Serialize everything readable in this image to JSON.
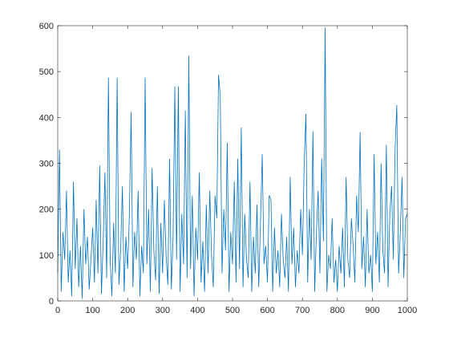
{
  "chart_data": {
    "type": "line",
    "color": "#0072bd",
    "xlim": [
      0,
      1000
    ],
    "ylim": [
      0,
      600
    ],
    "xticks": [
      0,
      100,
      200,
      300,
      400,
      500,
      600,
      700,
      800,
      900,
      1000
    ],
    "yticks": [
      0,
      100,
      200,
      300,
      400,
      500,
      600
    ],
    "x": [
      0,
      5,
      10,
      15,
      20,
      25,
      30,
      35,
      40,
      45,
      50,
      55,
      60,
      65,
      70,
      75,
      80,
      85,
      90,
      95,
      100,
      105,
      110,
      115,
      120,
      125,
      130,
      135,
      140,
      145,
      150,
      155,
      160,
      165,
      170,
      175,
      180,
      185,
      190,
      195,
      200,
      205,
      210,
      215,
      220,
      225,
      230,
      235,
      240,
      245,
      250,
      255,
      260,
      265,
      270,
      275,
      280,
      285,
      290,
      295,
      300,
      305,
      310,
      315,
      320,
      325,
      330,
      335,
      340,
      345,
      350,
      355,
      360,
      365,
      370,
      375,
      380,
      385,
      390,
      395,
      400,
      405,
      410,
      415,
      420,
      425,
      430,
      435,
      440,
      445,
      450,
      455,
      460,
      465,
      470,
      475,
      480,
      485,
      490,
      495,
      500,
      505,
      510,
      515,
      520,
      525,
      530,
      535,
      540,
      545,
      550,
      555,
      560,
      565,
      570,
      575,
      580,
      585,
      590,
      595,
      600,
      605,
      610,
      615,
      620,
      625,
      630,
      635,
      640,
      645,
      650,
      655,
      660,
      665,
      670,
      675,
      680,
      685,
      690,
      695,
      700,
      705,
      710,
      715,
      720,
      725,
      730,
      735,
      740,
      745,
      750,
      755,
      760,
      765,
      770,
      775,
      780,
      785,
      790,
      795,
      800,
      805,
      810,
      815,
      820,
      825,
      830,
      835,
      840,
      845,
      850,
      855,
      860,
      865,
      870,
      875,
      880,
      885,
      890,
      895,
      900,
      905,
      910,
      915,
      920,
      925,
      930,
      935,
      940,
      945,
      950,
      955,
      960,
      965,
      970,
      975,
      980,
      985,
      990,
      995,
      1000
    ],
    "values": [
      60,
      330,
      20,
      150,
      90,
      240,
      40,
      110,
      10,
      260,
      70,
      180,
      30,
      120,
      5,
      200,
      80,
      140,
      25,
      90,
      160,
      40,
      220,
      60,
      295,
      15,
      130,
      280,
      50,
      487,
      90,
      10,
      170,
      60,
      487,
      35,
      110,
      250,
      20,
      140,
      70,
      190,
      412,
      30,
      150,
      90,
      240,
      10,
      120,
      60,
      487,
      80,
      200,
      20,
      290,
      110,
      45,
      250,
      15,
      170,
      60,
      220,
      100,
      35,
      310,
      25,
      140,
      468,
      90,
      468,
      20,
      190,
      80,
      415,
      50,
      535,
      70,
      230,
      10,
      160,
      90,
      280,
      40,
      130,
      20,
      210,
      60,
      240,
      100,
      30,
      230,
      180,
      493,
      447,
      60,
      200,
      110,
      345,
      20,
      150,
      80,
      260,
      40,
      310,
      70,
      378,
      30,
      190,
      90,
      50,
      260,
      20,
      140,
      60,
      210,
      30,
      170,
      320,
      80,
      120,
      40,
      230,
      220,
      20,
      160,
      60,
      110,
      30,
      190,
      90,
      50,
      140,
      20,
      270,
      80,
      160,
      30,
      110,
      60,
      200,
      100,
      300,
      408,
      40,
      200,
      90,
      370,
      20,
      150,
      240,
      60,
      310,
      130,
      596,
      20,
      100,
      70,
      180,
      40,
      90,
      20,
      120,
      60,
      160,
      30,
      270,
      90,
      50,
      180,
      120,
      40,
      230,
      150,
      368,
      70,
      140,
      30,
      200,
      60,
      100,
      20,
      320,
      80,
      150,
      40,
      300,
      110,
      60,
      340,
      30,
      190,
      250,
      90,
      330,
      427,
      60,
      150,
      270,
      50,
      180,
      190
    ]
  }
}
